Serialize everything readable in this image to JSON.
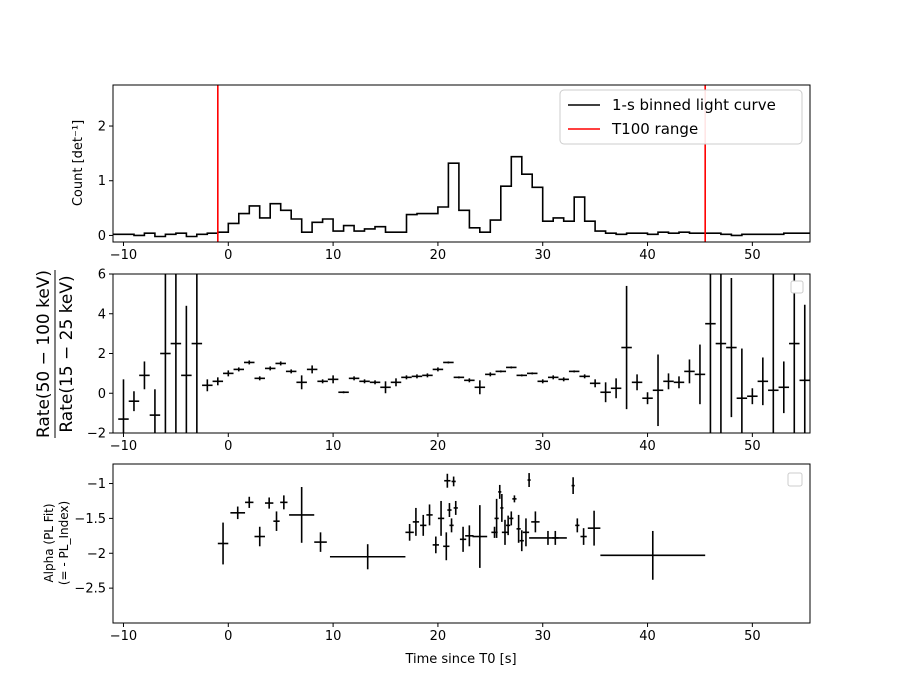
{
  "chart_data": [
    {
      "type": "line",
      "panel": "light-curve",
      "ylabel": "Count [det⁻¹]",
      "xlim": [
        -11,
        55.5
      ],
      "ylim": [
        -0.12,
        2.75
      ],
      "yticks": [
        0,
        1,
        2
      ],
      "xticks": [
        -10,
        0,
        10,
        20,
        30,
        40,
        50
      ],
      "legend_position": "top-right",
      "series": [
        {
          "name": "1-s binned light curve",
          "color": "#000000",
          "step": "post",
          "x": [
            -11,
            -10,
            -9,
            -8,
            -7,
            -6,
            -5,
            -4,
            -3,
            -2,
            -1,
            0,
            1,
            2,
            3,
            4,
            5,
            6,
            7,
            8,
            9,
            10,
            11,
            12,
            13,
            14,
            15,
            16,
            17,
            18,
            19,
            20,
            21,
            22,
            23,
            24,
            25,
            26,
            27,
            28,
            29,
            30,
            31,
            32,
            33,
            34,
            35,
            36,
            37,
            38,
            39,
            40,
            41,
            42,
            43,
            44,
            45,
            46,
            47,
            48,
            49,
            50,
            51,
            52,
            53,
            54,
            55
          ],
          "y": [
            0.02,
            0.02,
            0.0,
            0.04,
            -0.02,
            0.02,
            0.04,
            -0.02,
            0.02,
            0.04,
            0.06,
            0.22,
            0.4,
            0.54,
            0.32,
            0.58,
            0.46,
            0.3,
            0.06,
            0.24,
            0.3,
            0.08,
            0.18,
            0.08,
            0.12,
            0.16,
            0.06,
            0.06,
            0.38,
            0.4,
            0.4,
            0.52,
            1.32,
            0.46,
            0.14,
            0.06,
            0.28,
            0.9,
            1.44,
            1.12,
            0.88,
            0.26,
            0.32,
            0.26,
            0.7,
            0.26,
            0.08,
            0.04,
            0.02,
            0.04,
            0.04,
            0.02,
            0.06,
            0.04,
            0.06,
            0.04,
            0.04,
            0.04,
            0.02,
            0.0,
            0.02,
            0.02,
            0.02,
            0.02,
            0.04,
            0.04,
            0.04
          ]
        },
        {
          "name": "T100 range",
          "color": "#ff0000",
          "vlines": [
            -1.0,
            45.5
          ]
        }
      ]
    },
    {
      "type": "scatter",
      "panel": "hardness-ratio",
      "ylabel": "Rate(50 − 100 keV)",
      "ylabel_denominator": "Rate(15 − 25 keV)",
      "xlim": [
        -11,
        55.5
      ],
      "ylim": [
        -2,
        6
      ],
      "yticks": [
        -2,
        0,
        2,
        4,
        6
      ],
      "xticks": [
        -10,
        0,
        10,
        20,
        30,
        40,
        50
      ],
      "legend_position": "top-right",
      "points": [
        {
          "x": -10,
          "y": -1.3,
          "xerr": 0.5,
          "yerr": 2.0
        },
        {
          "x": -9,
          "y": -0.4,
          "xerr": 0.5,
          "yerr": 0.5
        },
        {
          "x": -8,
          "y": 0.9,
          "xerr": 0.5,
          "yerr": 0.7
        },
        {
          "x": -7,
          "y": -1.1,
          "xerr": 0.5,
          "yerr": 1.3
        },
        {
          "x": -6,
          "y": 2.0,
          "xerr": 0.5,
          "yerr": 4.5
        },
        {
          "x": -5,
          "y": 2.5,
          "xerr": 0.5,
          "yerr": 5.0
        },
        {
          "x": -4,
          "y": 0.9,
          "xerr": 0.5,
          "yerr": 3.5
        },
        {
          "x": -3,
          "y": 2.5,
          "xerr": 0.5,
          "yerr": 5.0
        },
        {
          "x": -2,
          "y": 0.4,
          "xerr": 0.5,
          "yerr": 0.3
        },
        {
          "x": -1,
          "y": 0.6,
          "xerr": 0.5,
          "yerr": 0.2
        },
        {
          "x": 0,
          "y": 1.0,
          "xerr": 0.5,
          "yerr": 0.15
        },
        {
          "x": 1,
          "y": 1.2,
          "xerr": 0.5,
          "yerr": 0.1
        },
        {
          "x": 2,
          "y": 1.55,
          "xerr": 0.5,
          "yerr": 0.1
        },
        {
          "x": 3,
          "y": 0.75,
          "xerr": 0.5,
          "yerr": 0.1
        },
        {
          "x": 4,
          "y": 1.25,
          "xerr": 0.5,
          "yerr": 0.1
        },
        {
          "x": 5,
          "y": 1.5,
          "xerr": 0.5,
          "yerr": 0.1
        },
        {
          "x": 6,
          "y": 1.1,
          "xerr": 0.5,
          "yerr": 0.1
        },
        {
          "x": 7,
          "y": 0.55,
          "xerr": 0.5,
          "yerr": 0.35
        },
        {
          "x": 8,
          "y": 1.2,
          "xerr": 0.5,
          "yerr": 0.2
        },
        {
          "x": 9,
          "y": 0.6,
          "xerr": 0.5,
          "yerr": 0.1
        },
        {
          "x": 10,
          "y": 0.7,
          "xerr": 0.5,
          "yerr": 0.2
        },
        {
          "x": 11,
          "y": 0.05,
          "xerr": 0.5,
          "yerr": 0.05
        },
        {
          "x": 12,
          "y": 0.75,
          "xerr": 0.5,
          "yerr": 0.1
        },
        {
          "x": 13,
          "y": 0.6,
          "xerr": 0.5,
          "yerr": 0.1
        },
        {
          "x": 14,
          "y": 0.55,
          "xerr": 0.5,
          "yerr": 0.1
        },
        {
          "x": 15,
          "y": 0.3,
          "xerr": 0.5,
          "yerr": 0.3
        },
        {
          "x": 16,
          "y": 0.55,
          "xerr": 0.5,
          "yerr": 0.2
        },
        {
          "x": 17,
          "y": 0.8,
          "xerr": 0.5,
          "yerr": 0.1
        },
        {
          "x": 18,
          "y": 0.85,
          "xerr": 0.5,
          "yerr": 0.1
        },
        {
          "x": 19,
          "y": 0.9,
          "xerr": 0.5,
          "yerr": 0.1
        },
        {
          "x": 20,
          "y": 1.2,
          "xerr": 0.5,
          "yerr": 0.1
        },
        {
          "x": 21,
          "y": 1.55,
          "xerr": 0.5,
          "yerr": 0.05
        },
        {
          "x": 22,
          "y": 0.8,
          "xerr": 0.5,
          "yerr": 0.05
        },
        {
          "x": 23,
          "y": 0.65,
          "xerr": 0.5,
          "yerr": 0.1
        },
        {
          "x": 24,
          "y": 0.3,
          "xerr": 0.5,
          "yerr": 0.35
        },
        {
          "x": 25,
          "y": 0.95,
          "xerr": 0.5,
          "yerr": 0.1
        },
        {
          "x": 26,
          "y": 1.1,
          "xerr": 0.5,
          "yerr": 0.05
        },
        {
          "x": 27,
          "y": 1.3,
          "xerr": 0.5,
          "yerr": 0.05
        },
        {
          "x": 28,
          "y": 0.9,
          "xerr": 0.5,
          "yerr": 0.05
        },
        {
          "x": 29,
          "y": 1.0,
          "xerr": 0.5,
          "yerr": 0.05
        },
        {
          "x": 30,
          "y": 0.6,
          "xerr": 0.5,
          "yerr": 0.1
        },
        {
          "x": 31,
          "y": 0.8,
          "xerr": 0.5,
          "yerr": 0.1
        },
        {
          "x": 32,
          "y": 0.7,
          "xerr": 0.5,
          "yerr": 0.1
        },
        {
          "x": 33,
          "y": 1.1,
          "xerr": 0.5,
          "yerr": 0.05
        },
        {
          "x": 34,
          "y": 0.85,
          "xerr": 0.5,
          "yerr": 0.1
        },
        {
          "x": 35,
          "y": 0.5,
          "xerr": 0.5,
          "yerr": 0.2
        },
        {
          "x": 36,
          "y": 0.05,
          "xerr": 0.5,
          "yerr": 0.5
        },
        {
          "x": 37,
          "y": 0.25,
          "xerr": 0.5,
          "yerr": 0.5
        },
        {
          "x": 38,
          "y": 2.3,
          "xerr": 0.5,
          "yerr": 3.1
        },
        {
          "x": 39,
          "y": 0.55,
          "xerr": 0.5,
          "yerr": 0.4
        },
        {
          "x": 40,
          "y": -0.25,
          "xerr": 0.5,
          "yerr": 0.3
        },
        {
          "x": 41,
          "y": 0.15,
          "xerr": 0.5,
          "yerr": 1.8
        },
        {
          "x": 42,
          "y": 0.6,
          "xerr": 0.5,
          "yerr": 0.4
        },
        {
          "x": 43,
          "y": 0.55,
          "xerr": 0.5,
          "yerr": 0.3
        },
        {
          "x": 44,
          "y": 1.1,
          "xerr": 0.5,
          "yerr": 0.6
        },
        {
          "x": 45,
          "y": 0.95,
          "xerr": 0.5,
          "yerr": 1.5
        },
        {
          "x": 46,
          "y": 3.5,
          "xerr": 0.5,
          "yerr": 6.0
        },
        {
          "x": 47,
          "y": 2.5,
          "xerr": 0.5,
          "yerr": 5.0
        },
        {
          "x": 48,
          "y": 2.3,
          "xerr": 0.5,
          "yerr": 3.5
        },
        {
          "x": 49,
          "y": -0.25,
          "xerr": 0.5,
          "yerr": 2.5
        },
        {
          "x": 50,
          "y": -0.15,
          "xerr": 0.5,
          "yerr": 0.4
        },
        {
          "x": 51,
          "y": 0.6,
          "xerr": 0.5,
          "yerr": 1.2
        },
        {
          "x": 52,
          "y": 0.15,
          "xerr": 0.5,
          "yerr": 6.0
        },
        {
          "x": 53,
          "y": 0.3,
          "xerr": 0.5,
          "yerr": 1.3
        },
        {
          "x": 54,
          "y": 2.5,
          "xerr": 0.5,
          "yerr": 5.0
        },
        {
          "x": 55,
          "y": 0.65,
          "xerr": 0.5,
          "yerr": 3.8
        }
      ]
    },
    {
      "type": "scatter",
      "panel": "pl-index",
      "ylabel": "Alpha (PL Fit)",
      "ylabel_line2": "(= - PL_Index)",
      "xlabel": "Time since T0 [s]",
      "xlim": [
        -11,
        55.5
      ],
      "ylim": [
        -3.0,
        -0.72
      ],
      "yticks": [
        -2.5,
        -2.0,
        -1.5,
        -1.0
      ],
      "xticks": [
        -10,
        0,
        10,
        20,
        30,
        40,
        50
      ],
      "legend_position": "top-right",
      "points": [
        {
          "x": -0.5,
          "y": -1.86,
          "xerr": 0.5,
          "yerr": 0.3
        },
        {
          "x": 0.9,
          "y": -1.42,
          "xerr": 0.7,
          "yerr": 0.09
        },
        {
          "x": 2.0,
          "y": -1.27,
          "xerr": 0.4,
          "yerr": 0.08
        },
        {
          "x": 3.0,
          "y": -1.76,
          "xerr": 0.5,
          "yerr": 0.14
        },
        {
          "x": 3.9,
          "y": -1.28,
          "xerr": 0.4,
          "yerr": 0.08
        },
        {
          "x": 4.6,
          "y": -1.54,
          "xerr": 0.3,
          "yerr": 0.14
        },
        {
          "x": 5.3,
          "y": -1.27,
          "xerr": 0.35,
          "yerr": 0.1
        },
        {
          "x": 7.0,
          "y": -1.45,
          "xerr": 1.2,
          "yerr": 0.4
        },
        {
          "x": 8.8,
          "y": -1.84,
          "xerr": 0.6,
          "yerr": 0.14
        },
        {
          "x": 13.3,
          "y": -2.05,
          "xerr": 3.6,
          "yerr": 0.18
        },
        {
          "x": 17.3,
          "y": -1.7,
          "xerr": 0.4,
          "yerr": 0.12
        },
        {
          "x": 17.9,
          "y": -1.55,
          "xerr": 0.3,
          "yerr": 0.2
        },
        {
          "x": 18.6,
          "y": -1.6,
          "xerr": 0.3,
          "yerr": 0.15
        },
        {
          "x": 19.2,
          "y": -1.45,
          "xerr": 0.3,
          "yerr": 0.15
        },
        {
          "x": 19.8,
          "y": -1.88,
          "xerr": 0.3,
          "yerr": 0.12
        },
        {
          "x": 20.3,
          "y": -1.5,
          "xerr": 0.3,
          "yerr": 0.25
        },
        {
          "x": 20.8,
          "y": -1.9,
          "xerr": 0.3,
          "yerr": 0.2
        },
        {
          "x": 20.9,
          "y": -0.96,
          "xerr": 0.3,
          "yerr": 0.1
        },
        {
          "x": 21.1,
          "y": -1.38,
          "xerr": 0.2,
          "yerr": 0.1
        },
        {
          "x": 21.3,
          "y": -1.6,
          "xerr": 0.2,
          "yerr": 0.1
        },
        {
          "x": 21.5,
          "y": -0.97,
          "xerr": 0.2,
          "yerr": 0.07
        },
        {
          "x": 21.7,
          "y": -1.35,
          "xerr": 0.2,
          "yerr": 0.1
        },
        {
          "x": 22.4,
          "y": -1.8,
          "xerr": 0.3,
          "yerr": 0.18
        },
        {
          "x": 23.0,
          "y": -1.75,
          "xerr": 0.4,
          "yerr": 0.15
        },
        {
          "x": 24.0,
          "y": -1.76,
          "xerr": 0.7,
          "yerr": 0.45
        },
        {
          "x": 25.4,
          "y": -1.7,
          "xerr": 0.3,
          "yerr": 0.08
        },
        {
          "x": 25.6,
          "y": -1.5,
          "xerr": 0.2,
          "yerr": 0.28
        },
        {
          "x": 25.9,
          "y": -1.12,
          "xerr": 0.15,
          "yerr": 0.1
        },
        {
          "x": 26.1,
          "y": -1.35,
          "xerr": 0.15,
          "yerr": 0.2
        },
        {
          "x": 26.4,
          "y": -1.7,
          "xerr": 0.3,
          "yerr": 0.18
        },
        {
          "x": 26.7,
          "y": -1.6,
          "xerr": 0.2,
          "yerr": 0.14
        },
        {
          "x": 27.0,
          "y": -1.5,
          "xerr": 0.2,
          "yerr": 0.1
        },
        {
          "x": 27.3,
          "y": -1.22,
          "xerr": 0.2,
          "yerr": 0.05
        },
        {
          "x": 27.7,
          "y": -1.65,
          "xerr": 0.2,
          "yerr": 0.2
        },
        {
          "x": 28.0,
          "y": -1.82,
          "xerr": 0.2,
          "yerr": 0.15
        },
        {
          "x": 28.4,
          "y": -1.7,
          "xerr": 0.3,
          "yerr": 0.2
        },
        {
          "x": 28.7,
          "y": -0.95,
          "xerr": 0.15,
          "yerr": 0.1
        },
        {
          "x": 29.3,
          "y": -1.55,
          "xerr": 0.4,
          "yerr": 0.15
        },
        {
          "x": 30.5,
          "y": -1.78,
          "xerr": 1.8,
          "yerr": 0.1
        },
        {
          "x": 31.2,
          "y": -1.78,
          "xerr": 0.3,
          "yerr": 0.1
        },
        {
          "x": 32.9,
          "y": -1.03,
          "xerr": 0.15,
          "yerr": 0.12
        },
        {
          "x": 33.3,
          "y": -1.6,
          "xerr": 0.2,
          "yerr": 0.1
        },
        {
          "x": 33.9,
          "y": -1.76,
          "xerr": 0.3,
          "yerr": 0.12
        },
        {
          "x": 34.9,
          "y": -1.64,
          "xerr": 0.6,
          "yerr": 0.25
        },
        {
          "x": 40.5,
          "y": -2.03,
          "xerr": 5.0,
          "yerr": 0.35
        }
      ]
    }
  ]
}
